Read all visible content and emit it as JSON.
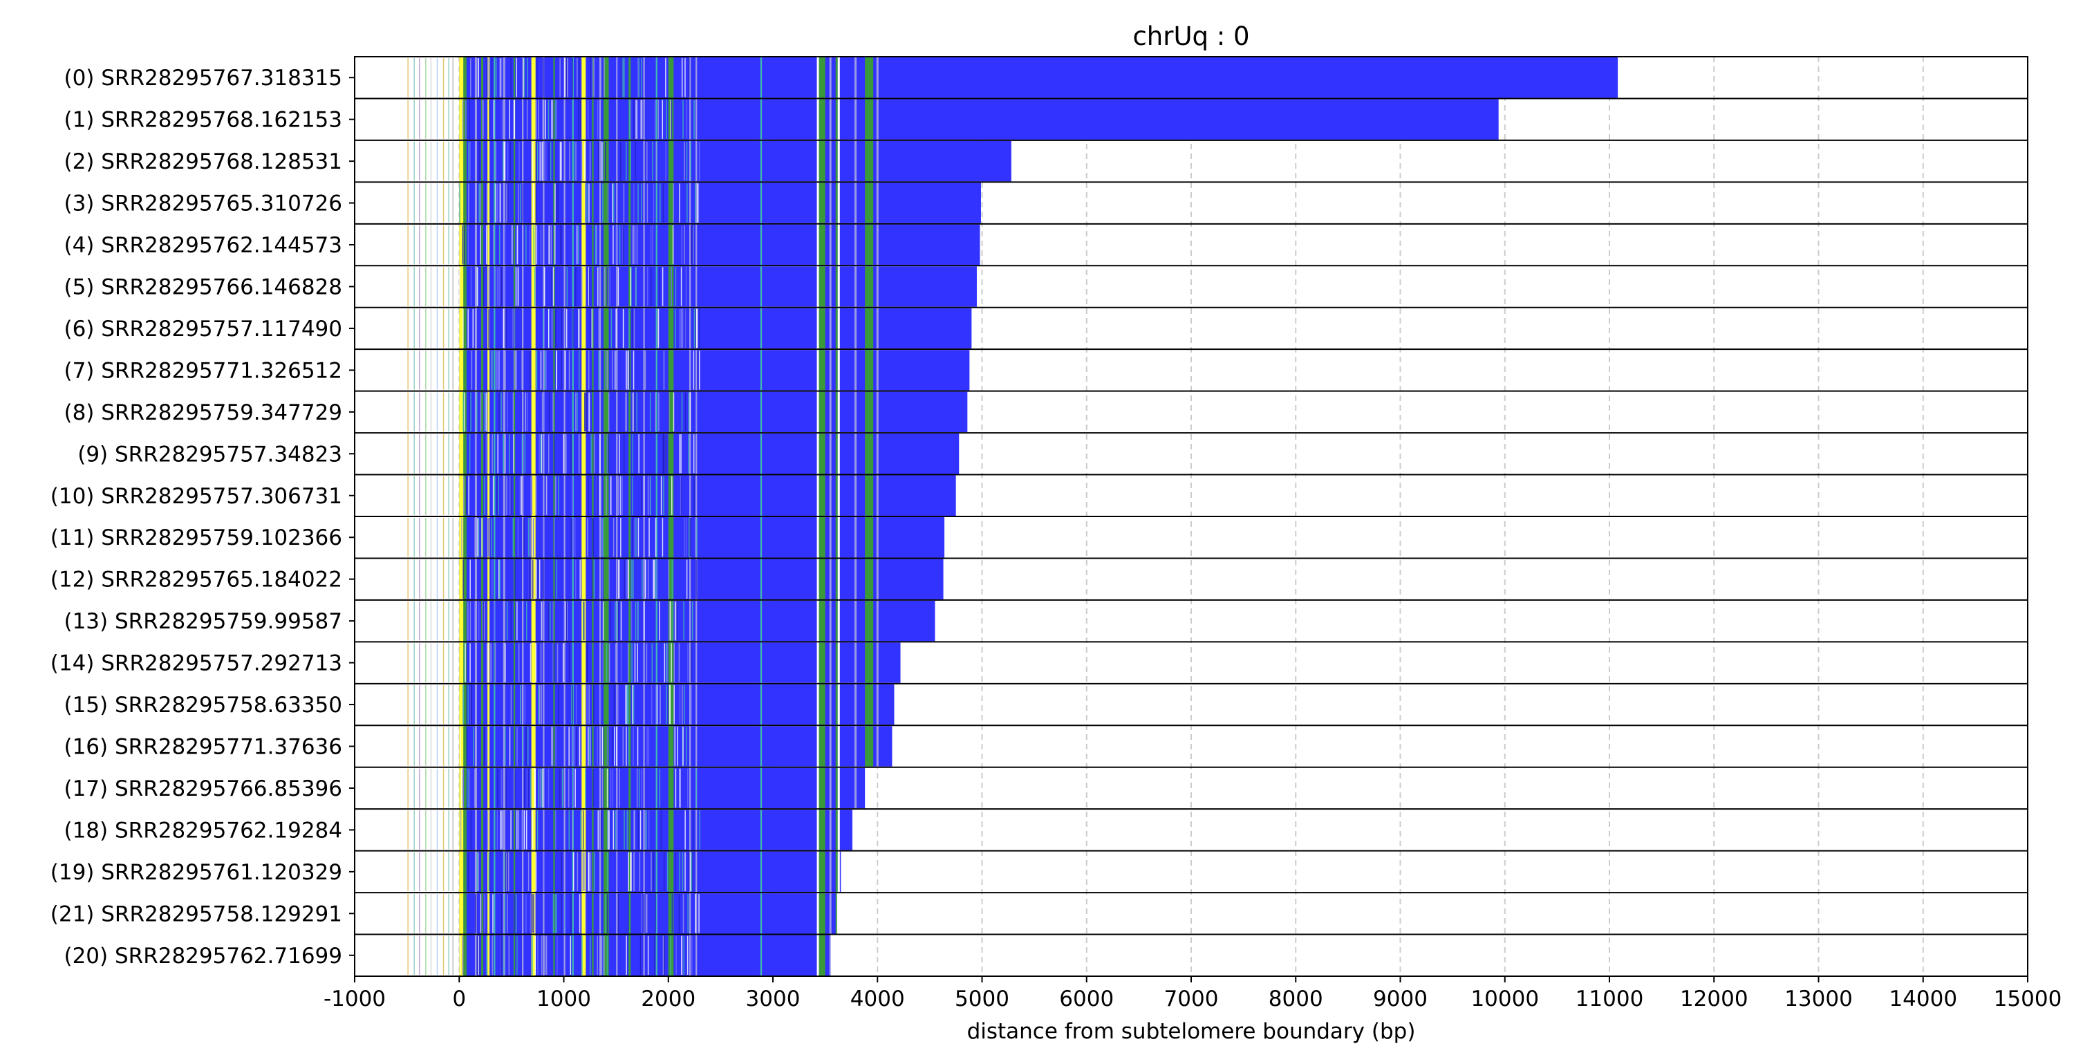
{
  "chart_data": {
    "type": "bar",
    "orientation": "horizontal",
    "title": "chrUq : 0",
    "xlabel": "distance from subtelomere boundary (bp)",
    "ylabel": "",
    "xlim": [
      -1000,
      15000
    ],
    "xticks": [
      -1000,
      0,
      1000,
      2000,
      3000,
      4000,
      5000,
      6000,
      7000,
      8000,
      9000,
      10000,
      11000,
      12000,
      13000,
      14000,
      15000
    ],
    "grid": "vertical-dashed",
    "colors": {
      "main": "#3333ff",
      "yellow": "#ffff33",
      "green": "#3a9a3a",
      "lavender": "#9a9ae6",
      "teal": "#3fb8b0",
      "gap": "#ffffff",
      "row_border": "#000000",
      "grid": "#cccccc"
    },
    "reads": [
      {
        "label": "(0) SRR28295767.318315",
        "start": -530,
        "end": 11080
      },
      {
        "label": "(1) SRR28295768.162153",
        "start": -520,
        "end": 9940
      },
      {
        "label": "(2) SRR28295768.128531",
        "start": -490,
        "end": 5280
      },
      {
        "label": "(3) SRR28295765.310726",
        "start": -510,
        "end": 4990
      },
      {
        "label": "(4) SRR28295762.144573",
        "start": -520,
        "end": 4980
      },
      {
        "label": "(5) SRR28295766.146828",
        "start": -500,
        "end": 4950
      },
      {
        "label": "(6) SRR28295757.117490",
        "start": -500,
        "end": 4900
      },
      {
        "label": "(7) SRR28295771.326512",
        "start": -510,
        "end": 4880
      },
      {
        "label": "(8) SRR28295759.347729",
        "start": -500,
        "end": 4860
      },
      {
        "label": "(9) SRR28295757.34823",
        "start": -490,
        "end": 4780
      },
      {
        "label": "(10) SRR28295757.306731",
        "start": -510,
        "end": 4750
      },
      {
        "label": "(11) SRR28295759.102366",
        "start": -500,
        "end": 4640
      },
      {
        "label": "(12) SRR28295765.184022",
        "start": -500,
        "end": 4630
      },
      {
        "label": "(13) SRR28295759.99587",
        "start": -490,
        "end": 4550
      },
      {
        "label": "(14) SRR28295757.292713",
        "start": -500,
        "end": 4220
      },
      {
        "label": "(15) SRR28295758.63350",
        "start": -500,
        "end": 4160
      },
      {
        "label": "(16) SRR28295771.37636",
        "start": -500,
        "end": 4140
      },
      {
        "label": "(17) SRR28295766.85396",
        "start": -500,
        "end": 3880
      },
      {
        "label": "(18) SRR28295762.19284",
        "start": -500,
        "end": 3760
      },
      {
        "label": "(19) SRR28295761.120329",
        "start": -510,
        "end": 3650
      },
      {
        "label": "(21) SRR28295758.129291",
        "start": -500,
        "end": 3610
      },
      {
        "label": "(20) SRR28295762.71699",
        "start": -500,
        "end": 3550
      }
    ],
    "shared_bands": [
      {
        "start": 0,
        "end": 40,
        "color": "yellow"
      },
      {
        "start": 40,
        "end": 70,
        "color": "green"
      },
      {
        "start": 150,
        "end": 170,
        "color": "lavender"
      },
      {
        "start": 210,
        "end": 230,
        "color": "green"
      },
      {
        "start": 270,
        "end": 290,
        "color": "yellow"
      },
      {
        "start": 330,
        "end": 345,
        "color": "teal"
      },
      {
        "start": 420,
        "end": 440,
        "color": "lavender"
      },
      {
        "start": 520,
        "end": 535,
        "color": "green"
      },
      {
        "start": 600,
        "end": 615,
        "color": "lavender"
      },
      {
        "start": 690,
        "end": 730,
        "color": "yellow"
      },
      {
        "start": 800,
        "end": 815,
        "color": "lavender"
      },
      {
        "start": 900,
        "end": 915,
        "color": "green"
      },
      {
        "start": 1000,
        "end": 1015,
        "color": "lavender"
      },
      {
        "start": 1080,
        "end": 1095,
        "color": "teal"
      },
      {
        "start": 1170,
        "end": 1210,
        "color": "yellow"
      },
      {
        "start": 1270,
        "end": 1285,
        "color": "green"
      },
      {
        "start": 1340,
        "end": 1355,
        "color": "lavender"
      },
      {
        "start": 1380,
        "end": 1430,
        "color": "green"
      },
      {
        "start": 1500,
        "end": 1515,
        "color": "lavender"
      },
      {
        "start": 1620,
        "end": 1640,
        "color": "green"
      },
      {
        "start": 1760,
        "end": 1775,
        "color": "lavender"
      },
      {
        "start": 1880,
        "end": 1895,
        "color": "teal"
      },
      {
        "start": 2000,
        "end": 2050,
        "color": "green"
      },
      {
        "start": 2200,
        "end": 2215,
        "color": "lavender"
      },
      {
        "start": 2260,
        "end": 2275,
        "color": "lavender"
      },
      {
        "start": 2880,
        "end": 2895,
        "color": "teal"
      },
      {
        "start": 3440,
        "end": 3500,
        "color": "green"
      },
      {
        "start": 3540,
        "end": 3560,
        "color": "lavender"
      },
      {
        "start": 3600,
        "end": 3620,
        "color": "green"
      },
      {
        "start": 3780,
        "end": 3800,
        "color": "lavender"
      },
      {
        "start": 3880,
        "end": 3960,
        "color": "green"
      },
      {
        "start": 3990,
        "end": 4010,
        "color": "lavender"
      }
    ],
    "gaps": [
      {
        "start": 3420,
        "end": 3440
      },
      {
        "start": 3620,
        "end": 3640
      }
    ]
  }
}
